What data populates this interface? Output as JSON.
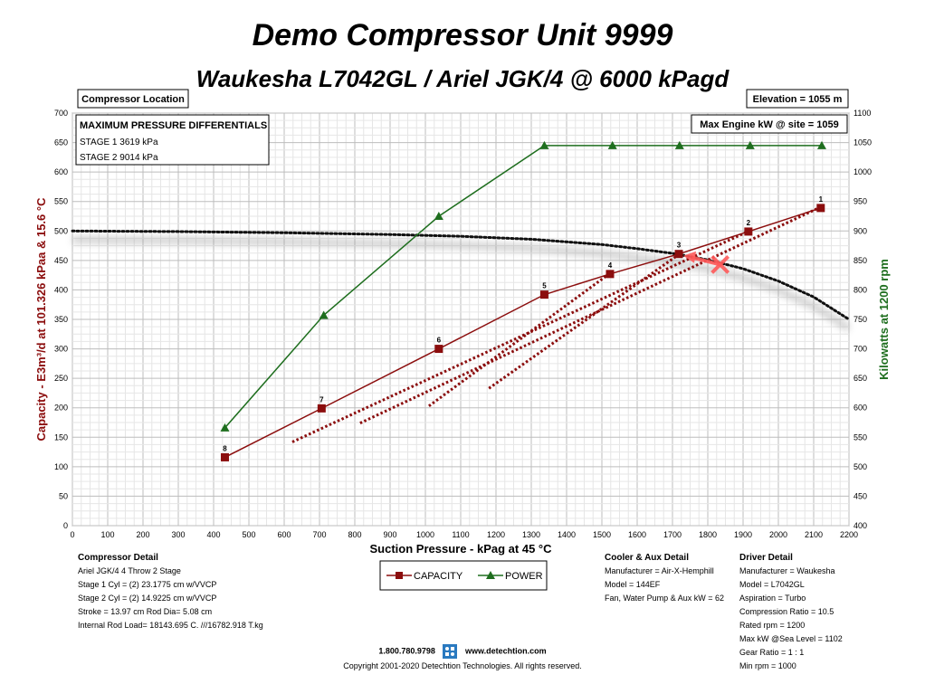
{
  "header": {
    "title": "Demo  Compressor Unit  9999",
    "subtitle": "Waukesha L7042GL / Ariel JGK/4 @ 6000 kPagd"
  },
  "boxes": {
    "location": "Compressor Location",
    "elevation": "Elevation = 1055 m",
    "max_engine": "Max Engine kW @ site = 1059",
    "max_pressure_title": "MAXIMUM PRESSURE DIFFERENTIALS",
    "stage1": "STAGE 1   3619 kPa",
    "stage2": "STAGE 2   9014 kPa"
  },
  "chart_data": {
    "type": "line",
    "xlabel": "Suction Pressure - kPag at 45 °C",
    "ylabel": "Capacity - E3m³/d at 101.326 kPaa & 15.6 °C",
    "y2label": "Kilowatts at 1200 rpm",
    "xlim": [
      0,
      2200
    ],
    "ylim": [
      0,
      700
    ],
    "y2lim": [
      400,
      1100
    ],
    "x_ticks": [
      "0",
      "100",
      "200",
      "300",
      "400",
      "500",
      "600",
      "700",
      "800",
      "900",
      "1000",
      "1100",
      "1200",
      "1300",
      "1400",
      "1500",
      "1600",
      "1700",
      "1800",
      "1900",
      "2000",
      "2100",
      "2200"
    ],
    "y_ticks": [
      "0",
      "50",
      "100",
      "150",
      "200",
      "250",
      "300",
      "350",
      "400",
      "450",
      "500",
      "550",
      "600",
      "650",
      "700"
    ],
    "y2_ticks": [
      "400",
      "450",
      "500",
      "550",
      "600",
      "650",
      "700",
      "750",
      "800",
      "850",
      "900",
      "950",
      "1000",
      "1050",
      "1100"
    ],
    "grid": true,
    "legend": [
      "CAPACITY",
      "POWER"
    ],
    "series": [
      {
        "name": "CAPACITY",
        "color": "#8b0d0d",
        "marker": "square",
        "axis": "left",
        "points": [
          {
            "x": 2120,
            "y": 539,
            "label": "1"
          },
          {
            "x": 1915,
            "y": 499,
            "label": "2"
          },
          {
            "x": 1718,
            "y": 461,
            "label": "3"
          },
          {
            "x": 1523,
            "y": 427,
            "label": "4"
          },
          {
            "x": 1337,
            "y": 392,
            "label": "5"
          },
          {
            "x": 1038,
            "y": 300,
            "label": "6"
          },
          {
            "x": 706,
            "y": 199,
            "label": "7"
          },
          {
            "x": 432,
            "y": 116,
            "label": "8"
          }
        ]
      },
      {
        "name": "POWER",
        "color": "#1e6e1e",
        "marker": "triangle",
        "axis": "right",
        "points": [
          {
            "x": 432,
            "y": 566
          },
          {
            "x": 712,
            "y": 757
          },
          {
            "x": 1038,
            "y": 925
          },
          {
            "x": 1337,
            "y": 1045
          },
          {
            "x": 1530,
            "y": 1045
          },
          {
            "x": 1720,
            "y": 1045
          },
          {
            "x": 1920,
            "y": 1045
          },
          {
            "x": 2123,
            "y": 1045
          }
        ]
      }
    ],
    "engine_limit_curve": {
      "color": "#111111",
      "axis": "right",
      "points": [
        {
          "x": 0,
          "y": 900
        },
        {
          "x": 300,
          "y": 899
        },
        {
          "x": 600,
          "y": 897
        },
        {
          "x": 900,
          "y": 894
        },
        {
          "x": 1100,
          "y": 891
        },
        {
          "x": 1300,
          "y": 886
        },
        {
          "x": 1500,
          "y": 877
        },
        {
          "x": 1600,
          "y": 870
        },
        {
          "x": 1700,
          "y": 862
        },
        {
          "x": 1800,
          "y": 851
        },
        {
          "x": 1900,
          "y": 836
        },
        {
          "x": 2000,
          "y": 815
        },
        {
          "x": 2100,
          "y": 788
        },
        {
          "x": 2200,
          "y": 750
        }
      ]
    },
    "rod_load_lines": [
      {
        "x1": 623,
        "y1": 142,
        "x2": 1917,
        "y2": 500
      },
      {
        "x1": 815,
        "y1": 174,
        "x2": 2114,
        "y2": 539
      },
      {
        "x1": 1010,
        "y1": 203,
        "x2": 1520,
        "y2": 427
      },
      {
        "x1": 1180,
        "y1": 233,
        "x2": 1720,
        "y2": 461
      }
    ],
    "operating_marker": {
      "x": 1835,
      "y": 443
    }
  },
  "details": {
    "compressor": {
      "title": "Compressor Detail",
      "lines": [
        "Ariel JGK/4   4 Throw  2 Stage",
        "Stage 1 Cyl = (2) 23.1775 cm w/VVCP",
        "Stage 2 Cyl = (2) 14.9225 cm w/VVCP",
        "Stroke = 13.97 cm Rod Dia= 5.08 cm",
        "Internal Rod Load= 18143.695 C. ///16782.918 T.kg"
      ]
    },
    "cooler": {
      "title": "Cooler & Aux Detail",
      "lines": [
        "Manufacturer = Air-X-Hemphill",
        "Model = 144EF",
        "Fan, Water Pump & Aux kW = 62"
      ]
    },
    "driver": {
      "title": "Driver Detail",
      "lines": [
        "Manufacturer = Waukesha",
        "Model = L7042GL",
        "Aspiration = Turbo",
        "Compression Ratio = 10.5",
        "Rated rpm = 1200",
        "Max kW @Sea Level = 1102",
        "Gear Ratio = 1 : 1",
        "Min rpm = 1000"
      ]
    }
  },
  "footer": {
    "phone": "1.800.780.9798",
    "web": "www.detechtion.com",
    "copyright": "Copyright 2001-2020 Detechtion Technologies. All rights reserved."
  }
}
